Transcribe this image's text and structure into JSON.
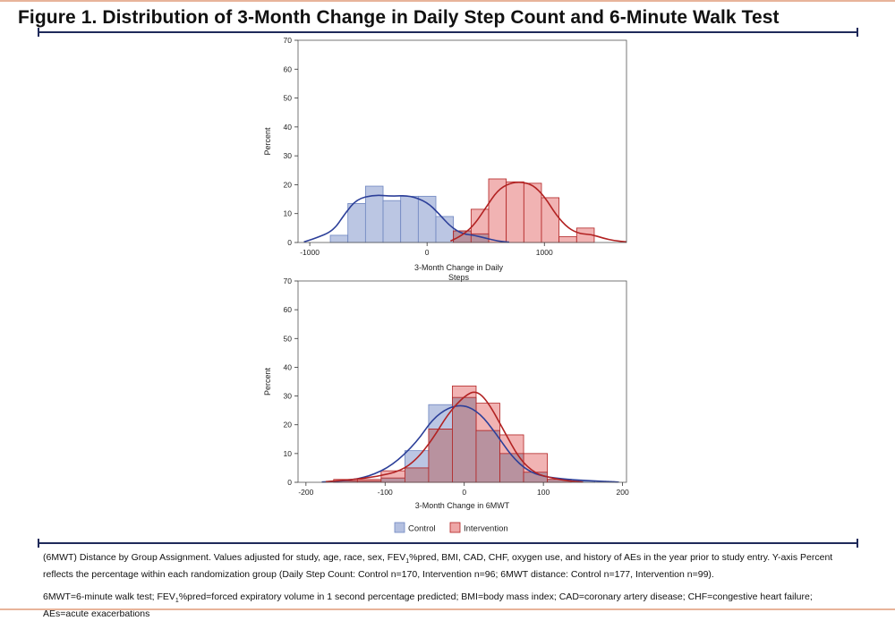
{
  "header": {
    "title": "Figure 1. Distribution of 3-Month Change in Daily Step Count and 6-Minute Walk Test"
  },
  "colors": {
    "control": "#6f86c0",
    "control_fill": "#b4c0e0",
    "intervention": "#b22222",
    "intervention_fill": "#eea6a6",
    "overlap_fill": "#b8929f",
    "rule": "#1f2a5a"
  },
  "legend": {
    "items": [
      "Control",
      "Intervention"
    ]
  },
  "footnotes": {
    "line1_a": "(6MWT) Distance by Group Assignment. Values adjusted for study, age, race, sex, FEV",
    "line1_sub": "1",
    "line1_b": "%pred, BMI, CAD, CHF, oxygen use, and history of AEs in the year prior to study entry. Y-axis Percent reflects the percentage within each randomization group (Daily Step Count: Control n=170, Intervention n=96; 6MWT distance: Control n=177, Intervention n=99).",
    "line2_a": "6MWT=6-minute walk test; FEV",
    "line2_sub": "1",
    "line2_b": "%pred=forced expiratory volume in 1 second percentage predicted; BMI=body mass index; CAD=coronary artery disease; CHF=congestive heart failure; AEs=acute exacerbations"
  },
  "chart_data": [
    {
      "type": "bar",
      "subtype": "histogram",
      "xlabel": "3-Month Change in Daily Steps",
      "ylabel": "Percent",
      "xlim": [
        -1100,
        1700
      ],
      "ylim": [
        0,
        70
      ],
      "xticks": [
        -1000,
        0,
        1000
      ],
      "yticks": [
        0,
        10,
        20,
        30,
        40,
        50,
        60,
        70
      ],
      "bin_width": 150,
      "grid": false,
      "series": [
        {
          "name": "Control",
          "bin_starts": [
            -825,
            -675,
            -525,
            -375,
            -225,
            -75,
            75,
            225,
            375
          ],
          "values": [
            2.5,
            13.5,
            19.5,
            14.5,
            16,
            16,
            9,
            4,
            3
          ],
          "curve": [
            [
              -1050,
              0.2
            ],
            [
              -950,
              1.5
            ],
            [
              -800,
              4
            ],
            [
              -700,
              10
            ],
            [
              -600,
              15
            ],
            [
              -450,
              16.5
            ],
            [
              -300,
              16
            ],
            [
              -150,
              16.3
            ],
            [
              0,
              14
            ],
            [
              100,
              10
            ],
            [
              200,
              5.5
            ],
            [
              300,
              3
            ],
            [
              400,
              2.5
            ],
            [
              500,
              1.5
            ],
            [
              600,
              0.5
            ],
            [
              700,
              0.1
            ]
          ]
        },
        {
          "name": "Intervention",
          "bin_starts": [
            225,
            375,
            525,
            675,
            825,
            975,
            1125,
            1275
          ],
          "values": [
            4,
            11.5,
            22,
            21,
            20.5,
            15.5,
            2,
            5
          ],
          "curve": [
            [
              200,
              0.5
            ],
            [
              300,
              2.5
            ],
            [
              400,
              6
            ],
            [
              500,
              12
            ],
            [
              600,
              18
            ],
            [
              700,
              20.5
            ],
            [
              800,
              21
            ],
            [
              900,
              20
            ],
            [
              1000,
              16
            ],
            [
              1100,
              9.5
            ],
            [
              1200,
              5
            ],
            [
              1300,
              3
            ],
            [
              1400,
              2.8
            ],
            [
              1500,
              1.5
            ],
            [
              1600,
              0.6
            ],
            [
              1700,
              0.2
            ]
          ]
        }
      ]
    },
    {
      "type": "bar",
      "subtype": "histogram",
      "xlabel": "3-Month Change in 6MWT",
      "ylabel": "Percent",
      "xlim": [
        -210,
        205
      ],
      "ylim": [
        0,
        70
      ],
      "xticks": [
        -200,
        -100,
        0,
        100,
        200
      ],
      "yticks": [
        0,
        10,
        20,
        30,
        40,
        50,
        60,
        70
      ],
      "bin_width": 30,
      "grid": false,
      "series": [
        {
          "name": "Control",
          "bin_starts": [
            -165,
            -135,
            -105,
            -75,
            -45,
            -15,
            15,
            45,
            75,
            105,
            135
          ],
          "values": [
            0.5,
            0.5,
            1.5,
            11,
            27,
            29.5,
            18,
            10,
            3.5,
            1,
            0.5
          ],
          "curve": [
            [
              -180,
              0.1
            ],
            [
              -150,
              0.5
            ],
            [
              -120,
              2
            ],
            [
              -90,
              6
            ],
            [
              -60,
              14
            ],
            [
              -40,
              22
            ],
            [
              -20,
              26
            ],
            [
              0,
              27
            ],
            [
              20,
              24
            ],
            [
              40,
              17
            ],
            [
              60,
              9
            ],
            [
              80,
              4
            ],
            [
              100,
              2
            ],
            [
              130,
              1
            ],
            [
              160,
              0.5
            ],
            [
              195,
              0.1
            ]
          ]
        },
        {
          "name": "Intervention",
          "bin_starts": [
            -165,
            -135,
            -105,
            -75,
            -45,
            -15,
            15,
            45,
            75,
            105
          ],
          "values": [
            1,
            1,
            4,
            5,
            18.5,
            33.5,
            27.5,
            16.5,
            10,
            1
          ],
          "curve": [
            [
              -175,
              0.2
            ],
            [
              -140,
              1
            ],
            [
              -110,
              2
            ],
            [
              -80,
              4
            ],
            [
              -60,
              8
            ],
            [
              -40,
              15
            ],
            [
              -20,
              24
            ],
            [
              0,
              30
            ],
            [
              15,
              32
            ],
            [
              30,
              28
            ],
            [
              50,
              18
            ],
            [
              70,
              8
            ],
            [
              90,
              3
            ],
            [
              110,
              1.5
            ],
            [
              130,
              0.5
            ],
            [
              150,
              0.1
            ]
          ]
        }
      ]
    }
  ]
}
